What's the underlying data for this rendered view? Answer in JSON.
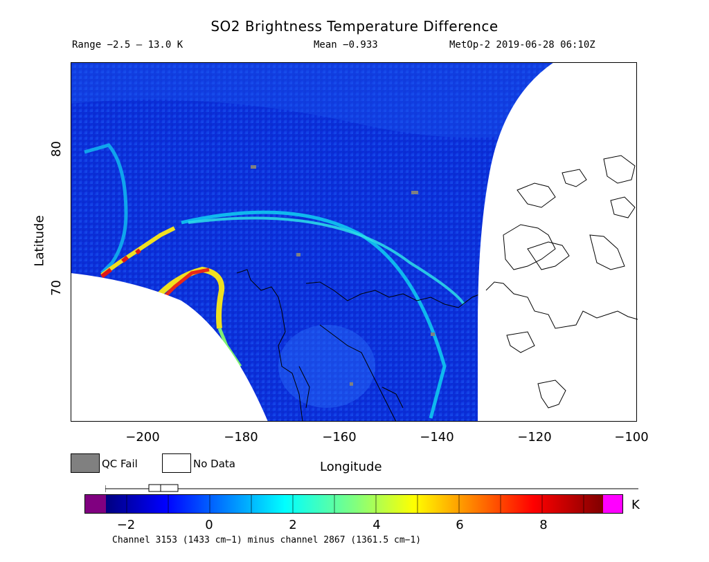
{
  "title": "SO2 Brightness Temperature Difference",
  "header": {
    "range": "Range −2.5 – 13.0 K",
    "mean": "Mean −0.933",
    "satellite_time": "MetOp-2 2019-06-28 06:10Z"
  },
  "axes": {
    "xlabel": "Longitude",
    "ylabel": "Latitude",
    "x_ticks": [
      "−200",
      "−180",
      "−160",
      "−140",
      "−120",
      "−100"
    ],
    "y_ticks": [
      "80",
      "70"
    ]
  },
  "legend": {
    "qc_fail": "QC Fail",
    "no_data": "No Data",
    "qc_color": "#808080",
    "no_data_color": "#ffffff"
  },
  "colorbar": {
    "unit": "K",
    "ticks": [
      "−2",
      "0",
      "2",
      "4",
      "6",
      "8"
    ],
    "range": [
      -2.5,
      9.5
    ],
    "under_color": "#800080",
    "over_color": "#ff00ff",
    "colormap": "jet"
  },
  "footer": {
    "channel_text": "Channel 3153 (1433 cm−1) minus channel 2867 (1361.5 cm−1)"
  },
  "map": {
    "projection": "polar-like swath",
    "lon_range": [
      -215,
      -100
    ],
    "lat_range": [
      60,
      87
    ],
    "background_value_K": -0.9,
    "features": [
      "volcanic SO2 plume arc",
      "coastlines of Alaska and Canadian Arctic",
      "no-data gaps"
    ]
  }
}
